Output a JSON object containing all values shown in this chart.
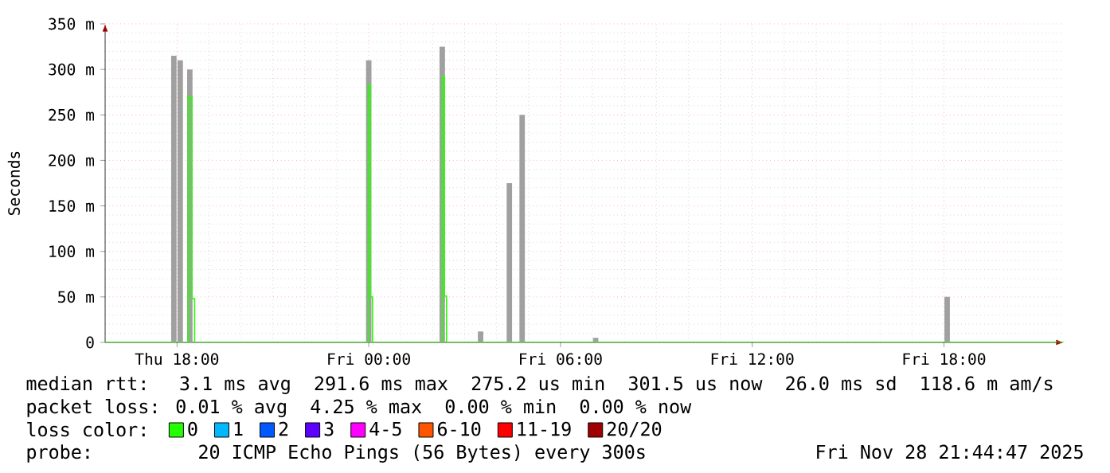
{
  "chart_data": {
    "type": "step",
    "ylabel": "Seconds",
    "legend_title": "loss color:",
    "xlim": [
      "2025-11-27T15:45",
      "2025-11-28T21:45"
    ],
    "xticks": [
      {
        "value": "2025-11-27T18:00",
        "label": "Thu 18:00"
      },
      {
        "value": "2025-11-28T00:00",
        "label": "Fri 00:00"
      },
      {
        "value": "2025-11-28T06:00",
        "label": "Fri 06:00"
      },
      {
        "value": "2025-11-28T12:00",
        "label": "Fri 12:00"
      },
      {
        "value": "2025-11-28T18:00",
        "label": "Fri 18:00"
      }
    ],
    "ylim": [
      0,
      350
    ],
    "yticks": [
      0,
      {
        "value": 50,
        "label": "50 m"
      },
      {
        "value": 100,
        "label": "100 m"
      },
      {
        "value": 150,
        "label": "150 m"
      },
      {
        "value": 200,
        "label": "200 m"
      },
      {
        "value": 250,
        "label": "250 m"
      },
      {
        "value": 300,
        "label": "300 m"
      },
      {
        "value": 350,
        "label": "350 m"
      }
    ],
    "grid": true,
    "legend": "bottom",
    "series": [
      {
        "type": "bar",
        "color": "#a0a0a0",
        "x": [
          "2025-11-27T17:54",
          "2025-11-27T18:06",
          "2025-11-27T18:24",
          "2025-11-28T00:00",
          "2025-11-28T02:18",
          "2025-11-28T03:30",
          "2025-11-28T04:24",
          "2025-11-28T04:48",
          "2025-11-28T07:06",
          "2025-11-28T18:06"
        ],
        "values": [
          315,
          310,
          300,
          310,
          325,
          12,
          175,
          250,
          5,
          50
        ]
      },
      {
        "name": "0",
        "color": "#26ff00",
        "x": [
          "2025-11-27T15:45",
          "2025-11-27T18:21",
          "2025-11-27T18:28",
          "2025-11-27T18:33",
          "2025-11-27T23:59",
          "2025-11-28T00:03",
          "2025-11-28T00:07",
          "2025-11-28T02:18",
          "2025-11-28T02:22",
          "2025-11-28T02:26",
          "2025-11-28T21:45"
        ],
        "values": [
          0,
          270,
          48,
          0,
          283,
          50,
          0,
          292,
          51,
          0,
          0
        ]
      },
      {
        "name": "1",
        "color": "#00b8ff"
      },
      {
        "name": "2",
        "color": "#0059ff"
      },
      {
        "name": "3",
        "color": "#5e00ff"
      },
      {
        "name": "4-5",
        "color": "#ff00ff"
      },
      {
        "name": "6-10",
        "color": "#ff5500"
      },
      {
        "name": "11-19",
        "color": "#ff0000"
      },
      {
        "name": "20/20",
        "color": "#a10000"
      }
    ],
    "annotations": [
      "median rtt:  3.1 ms avg  291.6 ms max  275.2 us min  301.5 us now  26.0 ms sd  118.6 m am/s",
      "packet loss: 0.01 % avg  4.25 % max  0.00 % min  0.00 % now",
      "probe:       20 ICMP Echo Pings (56 Bytes) every 300s",
      "Fri Nov 28 21:44:47 2025"
    ]
  }
}
